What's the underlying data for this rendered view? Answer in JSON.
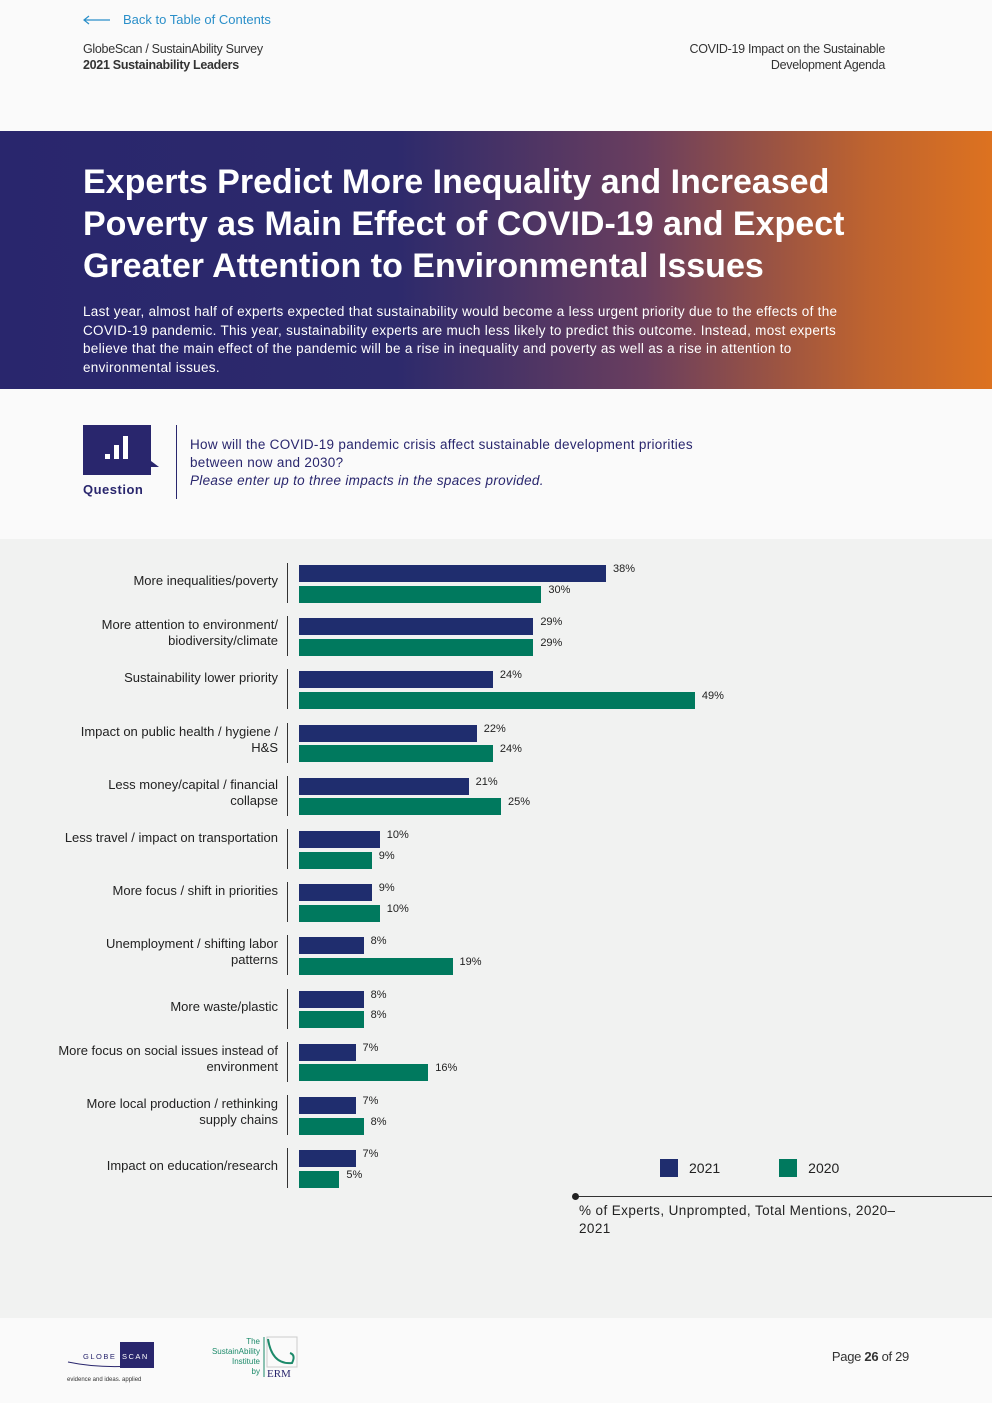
{
  "nav": {
    "back_label": "Back to Table of Contents"
  },
  "header": {
    "survey": "GlobeScan / SustainAbility Survey",
    "report": "2021 Sustainability Leaders",
    "section_line1": "COVID-19 Impact on the Sustainable",
    "section_line2": "Development Agenda"
  },
  "banner": {
    "title": "Experts Predict More Inequality and Increased Poverty as Main Effect of COVID-19 and Expect Greater Attention to Environmental Issues",
    "body": "Last year, almost half of experts expected that sustainability would become a less urgent priority due to the effects of the COVID-19 pandemic. This year, sustainability experts are much less likely to predict this outcome. Instead, most experts believe that the main effect of the pandemic will be a rise in inequality and poverty as well as a rise in attention to environmental issues."
  },
  "question": {
    "label": "Question",
    "text": "How will the COVID-19 pandemic crisis affect sustainable development priorities between now and 2030?",
    "instruction": "Please enter up to three impacts in the spaces provided."
  },
  "chart_data": {
    "type": "bar",
    "orientation": "horizontal",
    "categories": [
      "More inequalities/poverty",
      "More attention to environment/ biodiversity/climate",
      "Sustainability lower priority",
      "Impact on public health / hygiene / H&S",
      "Less money/capital / financial collapse",
      "Less travel / impact on transportation",
      "More focus / shift in priorities",
      "Unemployment / shifting labor patterns",
      "More waste/plastic",
      "More focus on social issues instead of environment",
      "More local production / rethinking supply chains",
      "Impact on education/research"
    ],
    "series": [
      {
        "name": "2021",
        "color": "#1f2d6e",
        "values": [
          38,
          29,
          24,
          22,
          21,
          10,
          9,
          8,
          8,
          7,
          7,
          7
        ]
      },
      {
        "name": "2020",
        "color": "#00795e",
        "values": [
          30,
          29,
          49,
          24,
          25,
          9,
          10,
          19,
          8,
          16,
          8,
          5
        ]
      }
    ],
    "value_suffix": "%",
    "legend_placement": "bottom-right",
    "note": "% of Experts, Unprompted, Total Mentions, 2020–2021"
  },
  "footer": {
    "page_prefix": "Page",
    "page": "26",
    "page_suffix": "of 29",
    "logo1": "GLOBESCAN evidence and ideas. applied",
    "logo2": "The SustainAbility Institute by ERM"
  }
}
